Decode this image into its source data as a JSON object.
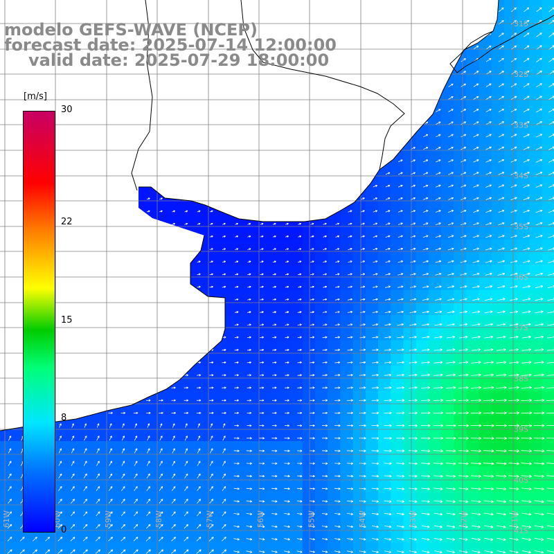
{
  "title": {
    "model": "modelo GEFS-WAVE (NCEP)",
    "forecast": "forecast date: 2025-07-14 12:00:00",
    "valid": "valid date: 2025-07-29 18:00:00"
  },
  "colorbar": {
    "unit": "[m/s]",
    "min": 0,
    "max": 30,
    "ticks": [
      {
        "value": 30,
        "label": "30"
      },
      {
        "value": 22,
        "label": "22"
      },
      {
        "value": 15,
        "label": "15"
      },
      {
        "value": 8,
        "label": "8"
      },
      {
        "value": 0,
        "label": "0"
      }
    ],
    "colors": [
      "#0000ff",
      "#0078ff",
      "#00e6ff",
      "#00ff78",
      "#00cc00",
      "#ffff00",
      "#ff7a00",
      "#ff0000",
      "#c80064"
    ]
  },
  "map": {
    "lat_labels": [
      "31S",
      "32S",
      "33S",
      "34S",
      "35S",
      "36S",
      "37S",
      "38S",
      "39S",
      "40S",
      "41S"
    ],
    "lon_labels": [
      "61W",
      "60W",
      "59W",
      "58W",
      "57W",
      "56W",
      "55W",
      "54W",
      "53W",
      "52W",
      "51W"
    ],
    "grid_color": "#808080",
    "land_color": "#ffffff",
    "coast_color": "#000000",
    "arrow_color": "#ffffff",
    "wind_direction": "mostly toward east / north-east"
  }
}
